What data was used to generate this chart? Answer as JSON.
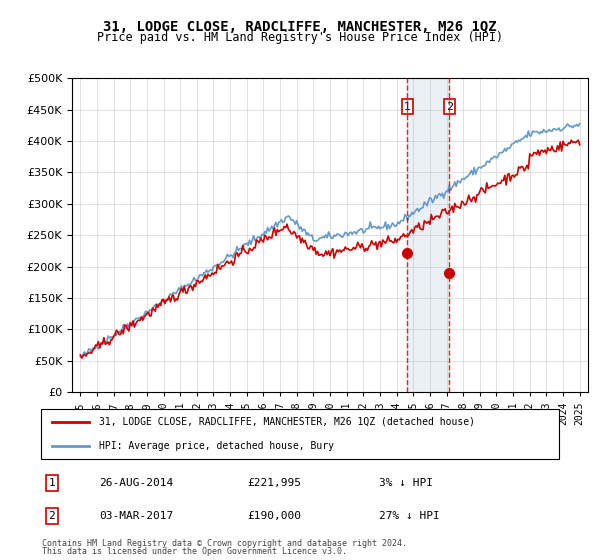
{
  "title": "31, LODGE CLOSE, RADCLIFFE, MANCHESTER, M26 1QZ",
  "subtitle": "Price paid vs. HM Land Registry's House Price Index (HPI)",
  "legend_line1": "31, LODGE CLOSE, RADCLIFFE, MANCHESTER, M26 1QZ (detached house)",
  "legend_line2": "HPI: Average price, detached house, Bury",
  "transactions": [
    {
      "num": 1,
      "date": "26-AUG-2014",
      "price": "£221,995",
      "hpi": "3% ↓ HPI"
    },
    {
      "num": 2,
      "date": "03-MAR-2017",
      "price": "£190,000",
      "hpi": "27% ↓ HPI"
    }
  ],
  "footnote1": "Contains HM Land Registry data © Crown copyright and database right 2024.",
  "footnote2": "This data is licensed under the Open Government Licence v3.0.",
  "red_color": "#cc0000",
  "blue_color": "#6699cc",
  "point1_year": 2014.65,
  "point1_value": 221995,
  "point2_year": 2017.17,
  "point2_value": 190000,
  "ylim": [
    0,
    500000
  ],
  "xlim": [
    1994.5,
    2025.5
  ]
}
